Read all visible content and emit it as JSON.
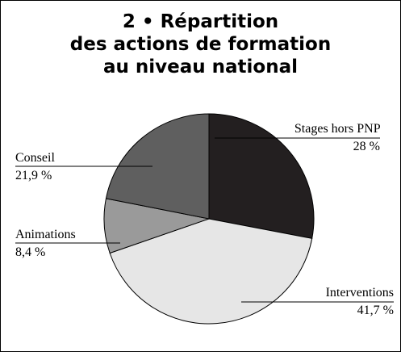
{
  "chart_data": {
    "type": "pie",
    "title": "2 • Répartition\ndes actions de formation\nau niveau national",
    "categories": [
      "Stages hors PNP",
      "Interventions",
      "Animations",
      "Conseil"
    ],
    "values": [
      28,
      41.7,
      8.4,
      21.9
    ],
    "value_labels": [
      "28 %",
      "41,7 %",
      "8,4 %",
      "21,9 %"
    ],
    "colors": [
      "#231f20",
      "#e6e6e6",
      "#9a9a9a",
      "#5f5f5f"
    ]
  }
}
